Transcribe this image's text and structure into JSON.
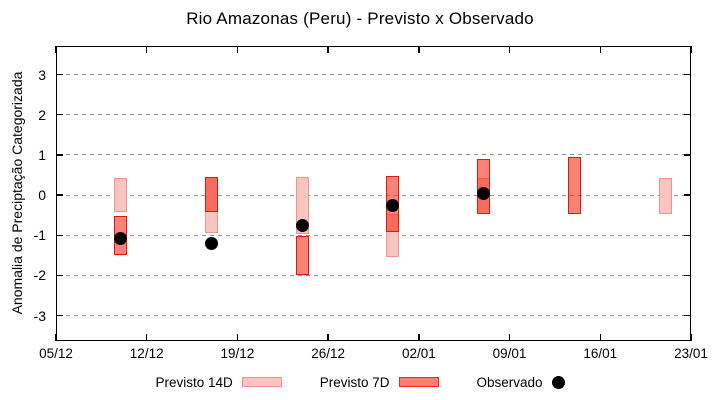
{
  "chart_data": {
    "type": "bar",
    "subtype": "forecast-range-bars-with-observed-points",
    "title": "Rio Amazonas (Peru) - Previsto x Observado",
    "xlabel": "",
    "ylabel": "Anomalia de Preciptação Categorizada",
    "ylim": [
      -3.63,
      3.71
    ],
    "xlim_days": [
      0,
      49
    ],
    "grid": {
      "horizontal": "dashed",
      "vertical": "none"
    },
    "legend_position": "bottom-center",
    "y_ticks": [
      3,
      2,
      1,
      0,
      -1,
      -2,
      -3
    ],
    "x_ticks": [
      {
        "label": "05/12",
        "day": 0
      },
      {
        "label": "12/12",
        "day": 7
      },
      {
        "label": "19/12",
        "day": 14
      },
      {
        "label": "26/12",
        "day": 21
      },
      {
        "label": "02/01",
        "day": 28
      },
      {
        "label": "09/01",
        "day": 35
      },
      {
        "label": "16/01",
        "day": 42
      },
      {
        "label": "23/01",
        "day": 49
      }
    ],
    "legend": [
      {
        "label": "Previsto 14D",
        "type": "box",
        "fill": "#f8c5c1",
        "border": "#f0948c"
      },
      {
        "label": "Previsto 7D",
        "type": "box",
        "fill": "#f87f74",
        "border": "#e8170c"
      },
      {
        "label": "Observado",
        "type": "dot",
        "color": "#000000"
      }
    ],
    "series": [
      {
        "name": "Previsto 14D",
        "type": "range-bar",
        "points": [
          {
            "date": "10/12",
            "day": 5,
            "low": -0.43,
            "high": 0.43
          },
          {
            "date": "17/12",
            "day": 12,
            "low": -0.95,
            "high": 0.45
          },
          {
            "date": "24/12",
            "day": 19,
            "low": -0.98,
            "high": 0.45
          },
          {
            "date": "31/12",
            "day": 26,
            "low": -1.53,
            "high": -0.46
          },
          {
            "date": "07/01",
            "day": 33,
            "low": -0.46,
            "high": 0.43
          },
          {
            "date": "21/01",
            "day": 47,
            "low": -0.46,
            "high": 0.43
          }
        ]
      },
      {
        "name": "Previsto 7D",
        "type": "range-bar",
        "points": [
          {
            "date": "10/12",
            "day": 5,
            "low": -1.48,
            "high": -0.53
          },
          {
            "date": "17/12",
            "day": 12,
            "low": -0.41,
            "high": 0.45
          },
          {
            "date": "24/12",
            "day": 19,
            "low": -2.0,
            "high": -1.02
          },
          {
            "date": "31/12",
            "day": 26,
            "low": -0.91,
            "high": 0.47
          },
          {
            "date": "07/01",
            "day": 33,
            "low": -0.46,
            "high": 0.91
          },
          {
            "date": "14/01",
            "day": 40,
            "low": -0.46,
            "high": 0.94
          }
        ]
      },
      {
        "name": "Observado",
        "type": "point",
        "points": [
          {
            "date": "10/12",
            "day": 5,
            "value": -1.08
          },
          {
            "date": "17/12",
            "day": 12,
            "value": -1.21
          },
          {
            "date": "24/12",
            "day": 19,
            "value": -0.76
          },
          {
            "date": "31/12",
            "day": 26,
            "value": -0.25
          },
          {
            "date": "07/01",
            "day": 33,
            "value": 0.05
          }
        ]
      }
    ]
  },
  "colors": {
    "background": "#ffffff",
    "axis": "#000000",
    "grid": "#8f8f8f",
    "previsto_14d_fill": "#f8c5c1",
    "previsto_14d_border": "#f0948c",
    "previsto_7d_fill": "rgba(247,48,30,0.6)",
    "previsto_7d_border": "#e8170c",
    "observado": "#000000"
  }
}
